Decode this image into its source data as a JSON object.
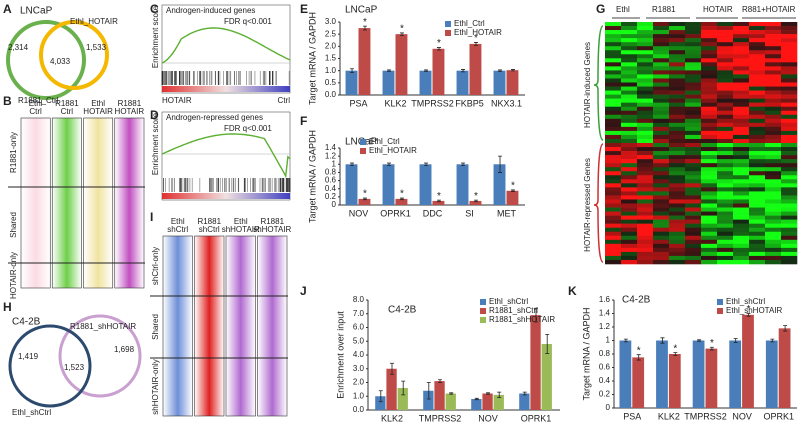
{
  "panels": {
    "A": {
      "letter": "A",
      "title": "LNCaP",
      "labels": [
        "Ethl_HOTAIR",
        "R1881_Ctrl"
      ],
      "counts": [
        "2,314",
        "4,033",
        "1,533"
      ]
    },
    "B": {
      "letter": "B",
      "columns": [
        [
          "Ethl",
          "Ctrl"
        ],
        [
          "R1881",
          "Ctrl"
        ],
        [
          "Ethl",
          "HOTAIR"
        ],
        [
          "R1881",
          "HOTAIR"
        ]
      ],
      "rows": [
        "R1881-only",
        "Shared",
        "HOTAIR-only"
      ]
    },
    "C": {
      "letter": "C",
      "title": "Androgen-induced genes",
      "note": "FDR q<0.001",
      "ylabel": "Enrichment score",
      "left": "HOTAIR",
      "right": "Ctrl"
    },
    "D": {
      "letter": "D",
      "title": "Androgen-repressed genes",
      "note": "FDR q<0.001",
      "ylabel": "Enrichment score"
    },
    "E": {
      "letter": "E"
    },
    "F": {
      "letter": "F"
    },
    "G": {
      "letter": "G",
      "columns": [
        "Ethl",
        "R1881",
        "HOTAIR",
        "R881+HOTAIR"
      ],
      "rows": [
        "HOTAIR-induced Genes",
        "HOTAIR-repressed Genes"
      ]
    },
    "H": {
      "letter": "H",
      "title": "C4-2B",
      "labels": [
        "R1881_shHOTAIR",
        "Ethl_shCtrl"
      ],
      "counts": [
        "1,419",
        "1,523",
        "1,698"
      ]
    },
    "I": {
      "letter": "I",
      "columns": [
        [
          "Ethl",
          "shCtrl"
        ],
        [
          "R1881",
          "shCtrl"
        ],
        [
          "Ethl",
          "shHOTAIR"
        ],
        [
          "R1881",
          "shHOTAIR"
        ]
      ],
      "rows": [
        "shCtrl-only",
        "Shared",
        "shHOTAIR-only"
      ]
    },
    "J": {
      "letter": "J"
    },
    "K": {
      "letter": "K"
    }
  },
  "chart_data": [
    {
      "type": "bar",
      "title": "LNCaP",
      "ylabel": "Target mRNA / GAPDH",
      "legend": "upper right",
      "categories": [
        "PSA",
        "KLK2",
        "TMPRSS2",
        "FKBP5",
        "NKX3.1"
      ],
      "series": [
        {
          "name": "Ethl_Ctrl",
          "color": "#4a7ebb",
          "values": [
            1.0,
            1.0,
            1.0,
            1.0,
            1.0
          ],
          "errors": [
            0.08,
            0.03,
            0.03,
            0.05,
            0.03
          ]
        },
        {
          "name": "Ethl_HOTAIR",
          "color": "#be4b48",
          "values": [
            2.75,
            2.5,
            1.9,
            2.1,
            1.02
          ],
          "errors": [
            0.08,
            0.05,
            0.05,
            0.06,
            0.03
          ],
          "significance": [
            "*",
            "*",
            "*",
            "*",
            null
          ]
        }
      ],
      "ylim": [
        0,
        3
      ],
      "yticks": [
        {
          "value": 0,
          "label": "0.0"
        },
        {
          "value": 0.5,
          "label": "0.5"
        },
        {
          "value": 1,
          "label": "1.0"
        },
        {
          "value": 1.5,
          "label": "1.5"
        },
        {
          "value": 2,
          "label": "2.0"
        },
        {
          "value": 2.5,
          "label": "2.5"
        },
        {
          "value": 3,
          "label": "3.0"
        }
      ]
    },
    {
      "type": "bar",
      "title": "LNCaP",
      "ylabel": "Target mRNA / GAPDH",
      "legend": "upper left",
      "categories": [
        "NOV",
        "OPRK1",
        "DDC",
        "SI",
        "MET"
      ],
      "series": [
        {
          "name": "Ethl_Ctrl",
          "color": "#4a7ebb",
          "values": [
            1.0,
            1.0,
            1.0,
            1.0,
            1.0
          ],
          "errors": [
            0.03,
            0.03,
            0.03,
            0.03,
            0.2
          ]
        },
        {
          "name": "Ethl_HOTAIR",
          "color": "#be4b48",
          "values": [
            0.15,
            0.15,
            0.1,
            0.1,
            0.35
          ],
          "errors": [
            0.02,
            0.02,
            0.02,
            0.02,
            0.02
          ],
          "significance": [
            "*",
            "*",
            "*",
            "*",
            "*"
          ]
        }
      ],
      "ylim": [
        0,
        1.4
      ],
      "yticks": [
        0,
        0.2,
        0.4,
        0.6,
        0.8,
        1,
        1.2,
        1.4
      ]
    },
    {
      "type": "bar",
      "title": "C4-2B",
      "ylabel": "Enrichment over input",
      "legend": "upper right",
      "categories": [
        "KLK2",
        "TMPRSS2",
        "NOV",
        "OPRK1"
      ],
      "series": [
        {
          "name": "Ethl_shCtrl",
          "color": "#4a7ebb",
          "values": [
            1.0,
            1.4,
            0.8,
            1.2
          ],
          "errors": [
            0.4,
            0.6,
            0.05,
            0.1
          ]
        },
        {
          "name": "R1881_shCtrl",
          "color": "#be4b48",
          "values": [
            3.0,
            2.1,
            1.2,
            6.9
          ],
          "errors": [
            0.4,
            0.1,
            0.05,
            0.5
          ]
        },
        {
          "name": "R1881_shHOTAIR",
          "color": "#9bbb59",
          "values": [
            1.6,
            1.2,
            1.1,
            4.8
          ],
          "errors": [
            0.5,
            0.05,
            0.2,
            0.7
          ]
        }
      ],
      "ylim": [
        0,
        8
      ],
      "yticks": [
        {
          "value": 0,
          "label": "0.0"
        },
        {
          "value": 1,
          "label": "1.0"
        },
        {
          "value": 2,
          "label": "2.0"
        },
        {
          "value": 3,
          "label": "3.0"
        },
        {
          "value": 4,
          "label": "4.0"
        },
        {
          "value": 5,
          "label": "5.0"
        },
        {
          "value": 6,
          "label": "6.0"
        },
        {
          "value": 7,
          "label": "7.0"
        },
        {
          "value": 8,
          "label": "8.0"
        }
      ]
    },
    {
      "type": "bar",
      "title": "C4-2B",
      "ylabel": "Target mRNA / GAPDH",
      "legend": "upper right",
      "categories": [
        "PSA",
        "KLK2",
        "TMPRSS2",
        "NOV",
        "OPRK1"
      ],
      "series": [
        {
          "name": "Ethl_shCtrl",
          "color": "#4a7ebb",
          "values": [
            1.0,
            1.0,
            1.0,
            1.0,
            1.0
          ],
          "errors": [
            0.02,
            0.04,
            0.01,
            0.03,
            0.02
          ]
        },
        {
          "name": "Ethl_shHOTAIR",
          "color": "#be4b48",
          "values": [
            0.75,
            0.8,
            0.88,
            1.38,
            1.18
          ],
          "errors": [
            0.04,
            0.02,
            0.02,
            0.02,
            0.04
          ],
          "significance": [
            "*",
            "*",
            "*",
            "*",
            null
          ]
        }
      ],
      "ylim": [
        0,
        1.6
      ],
      "yticks": [
        0,
        0.2,
        0.4,
        0.6,
        0.8,
        1,
        1.2,
        1.4,
        1.6
      ]
    }
  ]
}
